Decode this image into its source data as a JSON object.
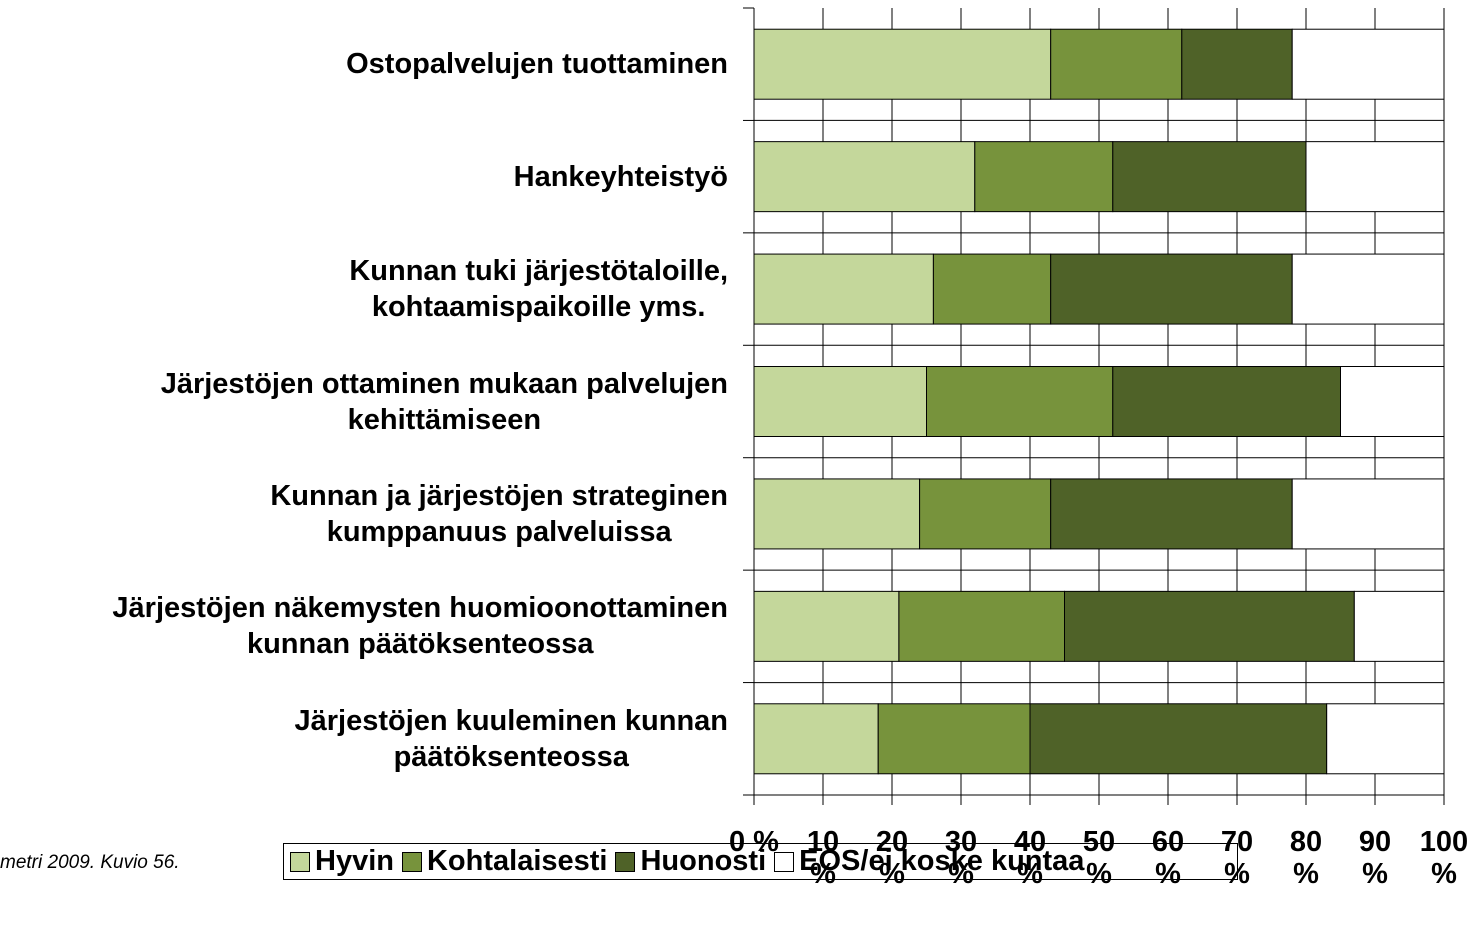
{
  "chart_data": {
    "type": "stacked-bar-horizontal",
    "categories": [
      "Ostopalvelujen tuottaminen",
      "Hankeyhteistyö",
      "Kunnan tuki järjestötaloille,\nkohtaamispaikoille yms.",
      "Järjestöjen ottaminen mukaan palvelujen\nkehittämiseen",
      "Kunnan ja järjestöjen strateginen\nkumppanuus palveluissa",
      "Järjestöjen näkemysten huomioonottaminen\nkunnan päätöksenteossa",
      "Järjestöjen kuuleminen kunnan\npäätöksenteossa"
    ],
    "series": [
      {
        "name": "Hyvin",
        "color": "#c4d79b",
        "values": [
          43,
          32,
          26,
          25,
          24,
          21,
          18
        ]
      },
      {
        "name": "Kohtalaisesti",
        "color": "#77933c",
        "values": [
          19,
          20,
          17,
          27,
          19,
          24,
          22
        ]
      },
      {
        "name": "Huonosti",
        "color": "#4f6228",
        "values": [
          16,
          28,
          35,
          33,
          35,
          42,
          43
        ]
      },
      {
        "name": "EOS/ei koske kuntaa",
        "color": "#ffffff",
        "values": [
          22,
          20,
          22,
          15,
          22,
          13,
          17
        ]
      }
    ],
    "xlim": [
      0,
      100
    ],
    "xticks": [
      {
        "value": 0,
        "label": "0 %"
      },
      {
        "value": 10,
        "label": "10 %"
      },
      {
        "value": 20,
        "label": "20 %"
      },
      {
        "value": 30,
        "label": "30 %"
      },
      {
        "value": 40,
        "label": "40 %"
      },
      {
        "value": 50,
        "label": "50 %"
      },
      {
        "value": 60,
        "label": "60 %"
      },
      {
        "value": 70,
        "label": "70 %"
      },
      {
        "value": 80,
        "label": "80 %"
      },
      {
        "value": 90,
        "label": "90 %"
      },
      {
        "value": 100,
        "label": "100 %"
      }
    ],
    "grid": true,
    "legend": "bottom",
    "source": "metri 2009. Kuvio 56."
  }
}
